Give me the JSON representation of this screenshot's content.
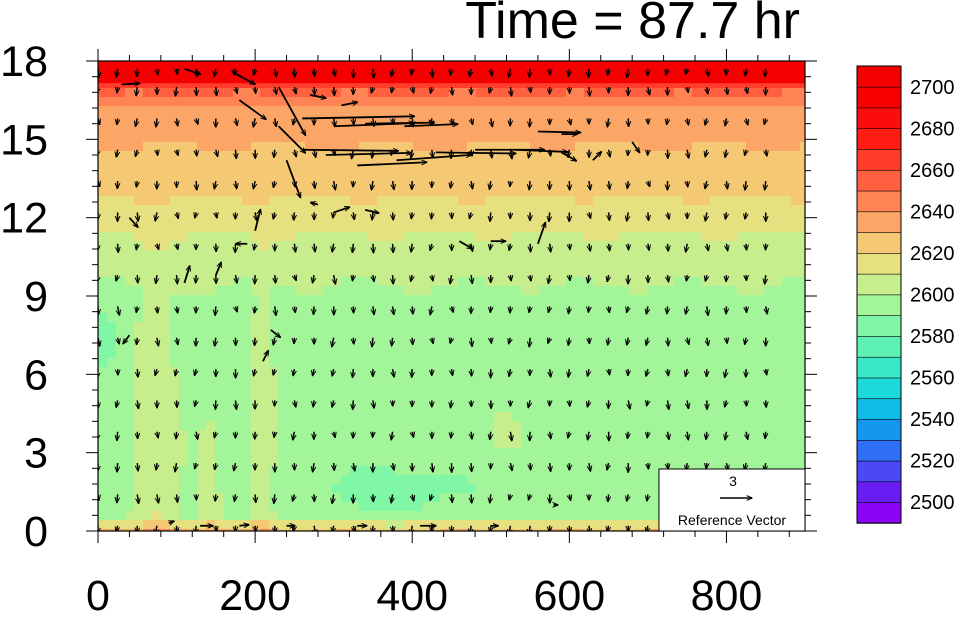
{
  "chart_data": {
    "type": "heatmap",
    "title": "Time = 87.7 hr",
    "xlabel": "",
    "ylabel": "",
    "xlim": [
      0,
      900
    ],
    "ylim": [
      0,
      18
    ],
    "x_ticks": [
      0,
      200,
      400,
      600,
      800
    ],
    "y_ticks": [
      0,
      3,
      6,
      9,
      12,
      15,
      18
    ],
    "x_tick_labels": [
      "0",
      "200",
      "400",
      "600",
      "800"
    ],
    "y_tick_labels": [
      "0",
      "3",
      "6",
      "9",
      "12",
      "15",
      "18"
    ],
    "colorbar": {
      "min": 2490,
      "max": 2710,
      "step": 10,
      "labels": [
        "2700",
        "2680",
        "2660",
        "2640",
        "2620",
        "2600",
        "2580",
        "2560",
        "2540",
        "2520",
        "2500"
      ],
      "label_values": [
        2700,
        2680,
        2660,
        2640,
        2620,
        2600,
        2580,
        2560,
        2540,
        2520,
        2500
      ],
      "colors": [
        "#8a05f5",
        "#6a1cf5",
        "#4d48f5",
        "#2f6ff5",
        "#1497ef",
        "#11bde6",
        "#1ad9d8",
        "#3ae8c7",
        "#5ef1b5",
        "#7ff7a7",
        "#a3f59a",
        "#c6ee8d",
        "#e6e080",
        "#f5c874",
        "#fba566",
        "#ff8455",
        "#ff6040",
        "#ff3d2a",
        "#ff1c12",
        "#fc0d0d",
        "#f80000",
        "#f40000"
      ]
    },
    "field_description": "field values mostly 2590-2610 in lower domain, 2620-2640 in upper-middle band, up to 2700 at top",
    "reference_vector": {
      "value": 3,
      "label": "Reference Vector",
      "value_label": "3"
    },
    "vector_grid": {
      "x_start": 0,
      "x_step": 25,
      "y_values": [
        0.2,
        1.4,
        2.6,
        3.8,
        5.0,
        6.2,
        7.4,
        8.6,
        9.8,
        11.0,
        12.2,
        13.4,
        14.6,
        15.8,
        17.0,
        17.7
      ]
    },
    "strong_vectors": [
      {
        "x": 260,
        "y": 15.8,
        "u": 10.5,
        "v": 0.2
      },
      {
        "x": 300,
        "y": 15.5,
        "u": 7.5,
        "v": 0.3
      },
      {
        "x": 340,
        "y": 15.6,
        "u": 6.5,
        "v": 0.1
      },
      {
        "x": 390,
        "y": 15.5,
        "u": 5.0,
        "v": 0.2
      },
      {
        "x": 260,
        "y": 14.6,
        "u": 9.0,
        "v": -0.1
      },
      {
        "x": 290,
        "y": 14.4,
        "u": 8.0,
        "v": 0.2
      },
      {
        "x": 330,
        "y": 14.0,
        "u": 6.5,
        "v": 0.3
      },
      {
        "x": 380,
        "y": 14.2,
        "u": 7.0,
        "v": 0.5
      },
      {
        "x": 430,
        "y": 14.5,
        "u": 7.5,
        "v": -0.1
      },
      {
        "x": 480,
        "y": 14.6,
        "u": 6.5,
        "v": 0.0
      },
      {
        "x": 530,
        "y": 14.6,
        "u": 5.0,
        "v": -0.2
      },
      {
        "x": 560,
        "y": 15.3,
        "u": 4.0,
        "v": -0.1
      },
      {
        "x": 180,
        "y": 16.5,
        "u": 2.5,
        "v": -1.8
      },
      {
        "x": 230,
        "y": 17.0,
        "u": 2.5,
        "v": -4.5
      },
      {
        "x": 230,
        "y": 15.5,
        "u": 2.5,
        "v": -2.5
      },
      {
        "x": 240,
        "y": 14.2,
        "u": 1.3,
        "v": -3.5
      },
      {
        "x": 170,
        "y": 17.6,
        "u": 2.2,
        "v": -1.2
      },
      {
        "x": 110,
        "y": 17.7,
        "u": 1.5,
        "v": -0.5
      },
      {
        "x": 30,
        "y": 17.1,
        "u": 1.7,
        "v": 0.1
      },
      {
        "x": 270,
        "y": 16.7,
        "u": 1.5,
        "v": -0.3
      },
      {
        "x": 310,
        "y": 16.3,
        "u": 1.5,
        "v": 0.3
      },
      {
        "x": 280,
        "y": 12.5,
        "u": -0.7,
        "v": 0.2
      },
      {
        "x": 300,
        "y": 12.2,
        "u": 1.5,
        "v": 0.5
      },
      {
        "x": 340,
        "y": 12.3,
        "u": 1.3,
        "v": -0.3
      },
      {
        "x": 460,
        "y": 11.1,
        "u": 1.2,
        "v": -0.7
      },
      {
        "x": 500,
        "y": 11.1,
        "u": 1.4,
        "v": 0.0
      },
      {
        "x": 560,
        "y": 11.0,
        "u": 0.7,
        "v": 2.0
      },
      {
        "x": 590,
        "y": 14.5,
        "u": 1.4,
        "v": -0.8
      },
      {
        "x": 630,
        "y": 14.2,
        "u": 0.8,
        "v": 0.8
      },
      {
        "x": 680,
        "y": 14.9,
        "u": 0.7,
        "v": -1.0
      },
      {
        "x": 590,
        "y": 15.2,
        "u": 1.5,
        "v": 0.0
      },
      {
        "x": 110,
        "y": 9.5,
        "u": 0.5,
        "v": 1.6
      },
      {
        "x": 150,
        "y": 9.8,
        "u": 0.5,
        "v": 1.2
      },
      {
        "x": 200,
        "y": 11.5,
        "u": 0.5,
        "v": 2.0
      },
      {
        "x": 210,
        "y": 6.5,
        "u": 0.5,
        "v": 1.0
      },
      {
        "x": 220,
        "y": 7.7,
        "u": 0.9,
        "v": -0.7
      },
      {
        "x": 190,
        "y": 11.0,
        "u": -1.1,
        "v": 0.0
      },
      {
        "x": 40,
        "y": 7.5,
        "u": -0.6,
        "v": -0.8
      },
      {
        "x": 40,
        "y": 12.0,
        "u": 0.8,
        "v": -0.9
      },
      {
        "x": 90,
        "y": 0.3,
        "u": 0.5,
        "v": 0.2
      },
      {
        "x": 130,
        "y": 0.2,
        "u": 1.2,
        "v": 0.0
      },
      {
        "x": 180,
        "y": 0.2,
        "u": 0.9,
        "v": 0.1
      },
      {
        "x": 240,
        "y": 0.2,
        "u": 0.8,
        "v": 0.0
      },
      {
        "x": 330,
        "y": 0.2,
        "u": 0.9,
        "v": 0.0
      },
      {
        "x": 410,
        "y": 0.2,
        "u": 1.5,
        "v": 0.0
      },
      {
        "x": 500,
        "y": 0.2,
        "u": 0.7,
        "v": 0.0
      },
      {
        "x": 580,
        "y": 1.0,
        "u": 0.4,
        "v": 0.0
      }
    ]
  }
}
